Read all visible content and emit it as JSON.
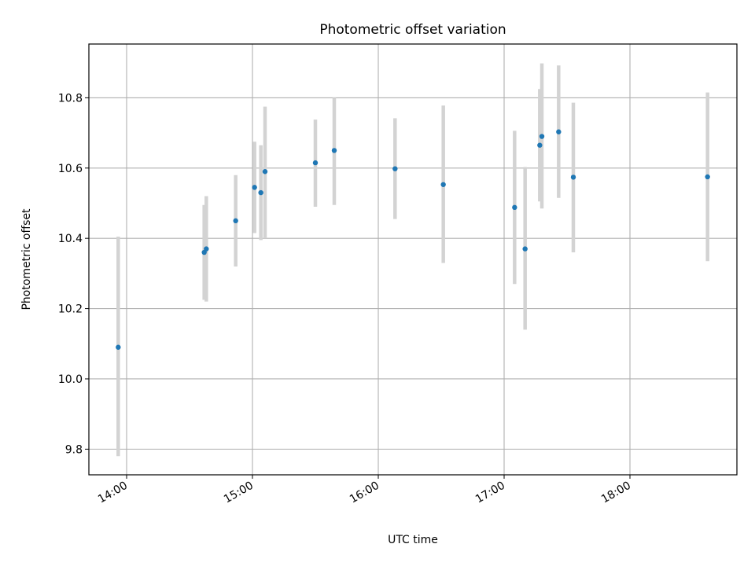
{
  "chart_data": {
    "type": "scatter",
    "title": "Photometric offset variation",
    "xlabel": "UTC time",
    "ylabel": "Photometric offset",
    "x_is_time": true,
    "xlim": [
      "13:42",
      "18:51"
    ],
    "ylim": [
      9.727,
      10.953
    ],
    "xticks": [
      "14:00",
      "15:00",
      "16:00",
      "17:00",
      "18:00"
    ],
    "yticks": [
      "9.8",
      "10.0",
      "10.2",
      "10.4",
      "10.6",
      "10.8"
    ],
    "grid": true,
    "point_color": "#1f77b4",
    "errorbar_color": "#d3d3d3",
    "series": [
      {
        "x": [
          "13:56",
          "14:37",
          "14:38",
          "14:52",
          "15:01",
          "15:04",
          "15:06",
          "15:30",
          "15:39",
          "16:08",
          "16:31",
          "17:05",
          "17:10",
          "17:17",
          "17:18",
          "17:26",
          "17:33",
          "18:37"
        ],
        "y": [
          10.09,
          10.36,
          10.37,
          10.45,
          10.545,
          10.53,
          10.59,
          10.615,
          10.65,
          10.598,
          10.553,
          10.488,
          10.37,
          10.665,
          10.69,
          10.703,
          10.574,
          10.575
        ],
        "yerr_low": [
          9.78,
          10.225,
          10.22,
          10.32,
          10.415,
          10.395,
          10.4,
          10.49,
          10.495,
          10.455,
          10.33,
          10.27,
          10.14,
          10.505,
          10.485,
          10.515,
          10.36,
          10.335
        ],
        "yerr_high": [
          10.405,
          10.495,
          10.52,
          10.58,
          10.675,
          10.665,
          10.775,
          10.738,
          10.8,
          10.742,
          10.778,
          10.706,
          10.603,
          10.825,
          10.898,
          10.892,
          10.786,
          10.815
        ]
      }
    ]
  }
}
